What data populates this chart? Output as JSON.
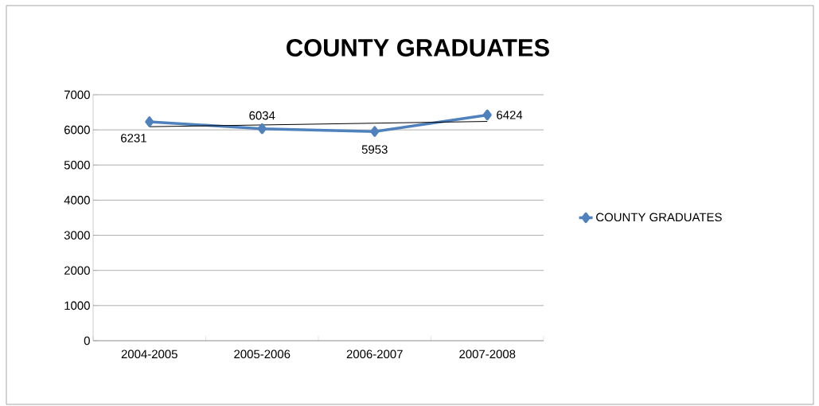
{
  "chart_data": {
    "type": "line",
    "title": "COUNTY GRADUATES",
    "categories": [
      "2004-2005",
      "2005-2006",
      "2006-2007",
      "2007-2008"
    ],
    "series": [
      {
        "name": "COUNTY GRADUATES",
        "color": "#4f81bd",
        "values": [
          6231,
          6034,
          5953,
          6424
        ],
        "value_labels": [
          "6231",
          "6034",
          "5953",
          "6424"
        ],
        "marker": "diamond"
      },
      {
        "type": "line",
        "color": "#000000",
        "values": [
          6090,
          6140,
          6190,
          6240
        ],
        "marker": "none"
      }
    ],
    "ylim": [
      0,
      7000
    ],
    "yticks": [
      0,
      1000,
      2000,
      3000,
      4000,
      5000,
      6000,
      7000
    ],
    "grid": "y",
    "legend": "right"
  }
}
